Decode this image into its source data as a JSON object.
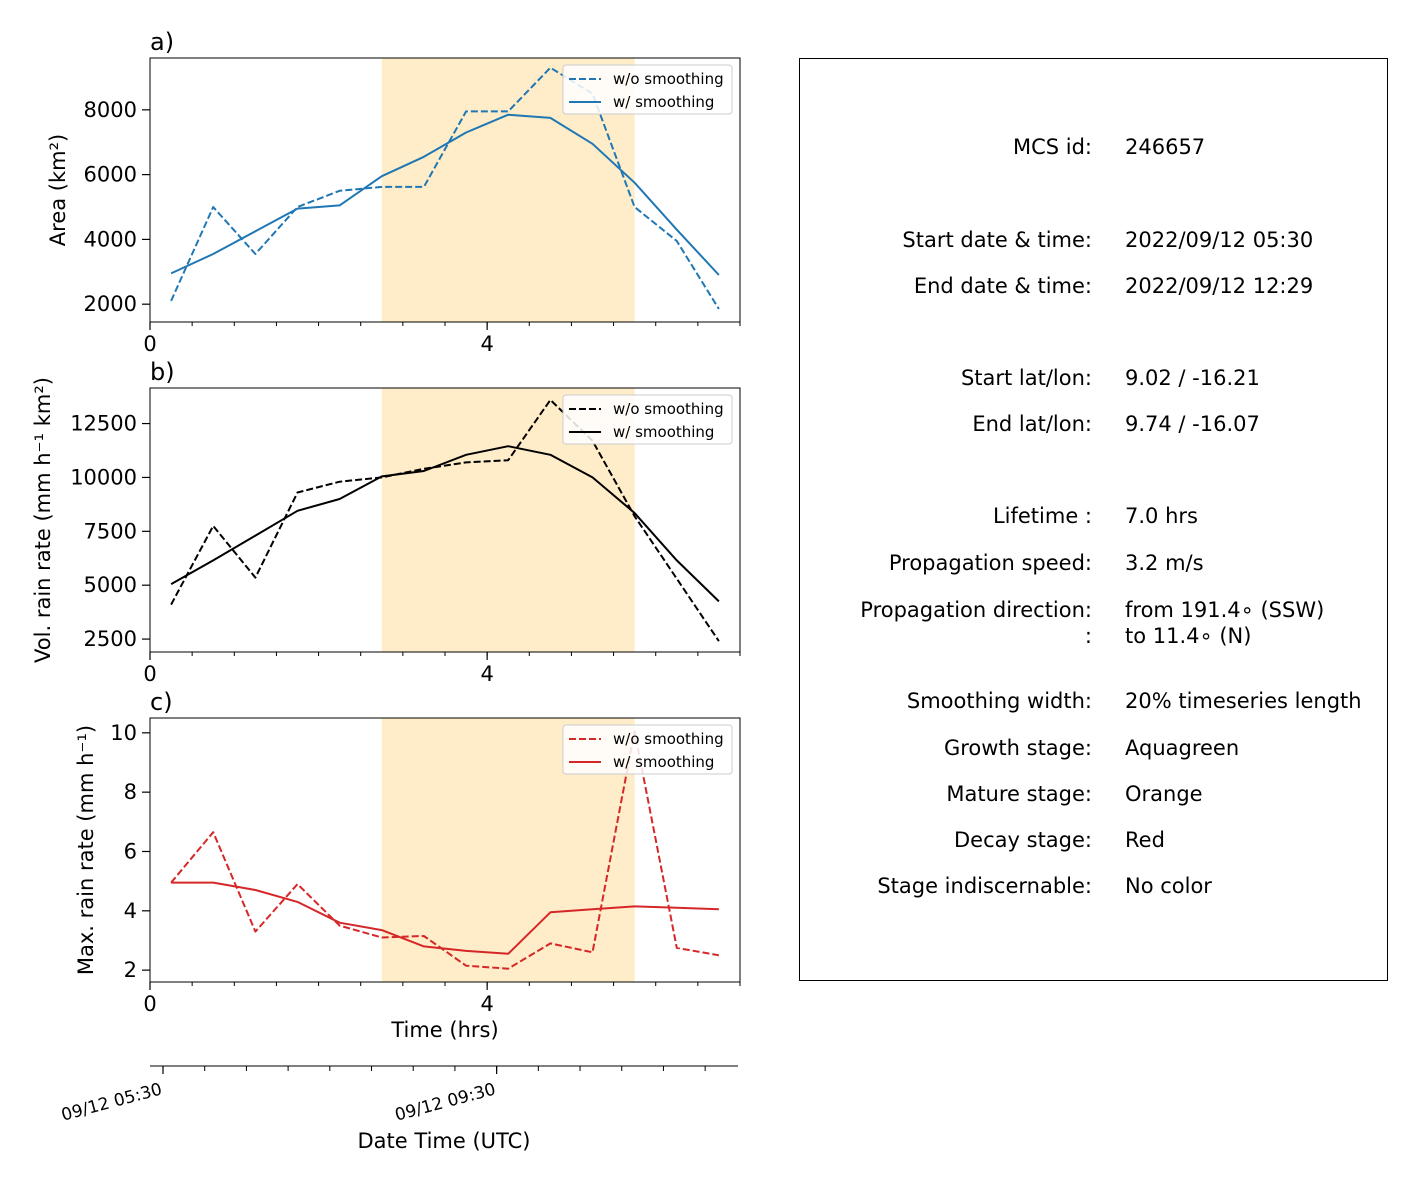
{
  "chart_data": [
    {
      "type": "line",
      "panel_label": "a)",
      "xlabel": "",
      "ylabel": "Area  (km²)",
      "xlim": [
        0,
        7.0
      ],
      "ylim": [
        1450,
        9600
      ],
      "xticks": [
        0,
        4
      ],
      "yticks": [
        2000,
        4000,
        6000,
        8000
      ],
      "mature_stage_span": [
        2.75,
        5.75
      ],
      "legend_position": "upper right",
      "x": [
        0.25,
        0.75,
        1.25,
        1.75,
        2.25,
        2.75,
        3.25,
        3.75,
        4.25,
        4.75,
        5.25,
        5.75,
        6.25,
        6.75
      ],
      "series": [
        {
          "name": "w/o smoothing",
          "style": "dashed",
          "color": "#1f77b4",
          "values": [
            2100,
            5000,
            3550,
            5000,
            5500,
            5620,
            5620,
            7950,
            7950,
            9300,
            8500,
            5000,
            3950,
            1850
          ]
        },
        {
          "name": "w/ smoothing",
          "style": "solid",
          "color": "#1f77b4",
          "values": [
            2950,
            3550,
            4250,
            4950,
            5050,
            5950,
            6550,
            7300,
            7850,
            7750,
            6950,
            5750,
            4300,
            2900
          ]
        }
      ]
    },
    {
      "type": "line",
      "panel_label": "b)",
      "xlabel": "",
      "ylabel": "Vol. rain rate (mm h⁻¹ km²)",
      "xlim": [
        0,
        7.0
      ],
      "ylim": [
        1900,
        14150
      ],
      "xticks": [
        0,
        4
      ],
      "yticks": [
        2500,
        5000,
        7500,
        10000,
        12500
      ],
      "mature_stage_span": [
        2.75,
        5.75
      ],
      "legend_position": "upper right",
      "x": [
        0.25,
        0.75,
        1.25,
        1.75,
        2.25,
        2.75,
        3.25,
        3.75,
        4.25,
        4.75,
        5.25,
        5.75,
        6.25,
        6.75
      ],
      "series": [
        {
          "name": "w/o smoothing",
          "style": "dashed",
          "color": "#000000",
          "values": [
            4100,
            7750,
            5350,
            9300,
            9800,
            10000,
            10400,
            10700,
            10800,
            13600,
            11700,
            8200,
            5300,
            2400
          ]
        },
        {
          "name": "w/ smoothing",
          "style": "solid",
          "color": "#000000",
          "values": [
            5050,
            6150,
            7300,
            8450,
            9000,
            10050,
            10300,
            11050,
            11450,
            11050,
            10000,
            8350,
            6150,
            4250
          ]
        }
      ]
    },
    {
      "type": "line",
      "panel_label": "c)",
      "xlabel": "Time (hrs)",
      "ylabel": "Max. rain rate  (mm h⁻¹)",
      "xlim": [
        0,
        7.0
      ],
      "ylim": [
        1.6,
        10.5
      ],
      "xticks": [
        0,
        4
      ],
      "yticks": [
        2,
        4,
        6,
        8,
        10
      ],
      "mature_stage_span": [
        2.75,
        5.75
      ],
      "legend_position": "upper right",
      "x": [
        0.25,
        0.75,
        1.25,
        1.75,
        2.25,
        2.75,
        3.25,
        3.75,
        4.25,
        4.75,
        5.25,
        5.75,
        6.25,
        6.75
      ],
      "series": [
        {
          "name": "w/o smoothing",
          "style": "dashed",
          "color": "#d62728",
          "values": [
            4.95,
            6.65,
            3.3,
            4.9,
            3.5,
            3.1,
            3.15,
            2.15,
            2.05,
            2.9,
            2.6,
            10.05,
            2.75,
            2.5
          ]
        },
        {
          "name": "w/ smoothing",
          "style": "solid",
          "color": "#d62728",
          "values": [
            4.95,
            4.95,
            4.7,
            4.3,
            3.6,
            3.35,
            2.8,
            2.65,
            2.55,
            3.95,
            4.05,
            4.15,
            4.1,
            4.05
          ]
        }
      ]
    },
    {
      "type": "axis",
      "xlabel": "Date Time (UTC)",
      "tick_labels": [
        "09/12 05:30",
        "09/12 09:30"
      ],
      "tick_hours": [
        0,
        4
      ]
    }
  ],
  "info_panel": {
    "rows": [
      {
        "label": "MCS id:",
        "value": "246657"
      },
      {
        "label": "Start date & time:",
        "value": "2022/09/12 05:30"
      },
      {
        "label": "End date & time:",
        "value": "2022/09/12 12:29"
      },
      {
        "label": "Start lat/lon:",
        "value": "9.02 / -16.21"
      },
      {
        "label": "End lat/lon:",
        "value": "9.74 / -16.07"
      },
      {
        "label": "Lifetime :",
        "value": "7.0 hrs"
      },
      {
        "label": "Propagation speed:",
        "value": "3.2 m/s"
      },
      {
        "label": "Propagation direction:",
        "value": "from 191.4∘ (SSW)"
      },
      {
        "label": ":",
        "value": "to    11.4∘ (N)"
      },
      {
        "label": "Smoothing width:",
        "value": "20% timeseries length"
      },
      {
        "label": "Growth stage:",
        "value": "Aquagreen"
      },
      {
        "label": "Mature stage:",
        "value": "Orange"
      },
      {
        "label": "Decay stage:",
        "value": "Red"
      },
      {
        "label": "Stage indiscernable:",
        "value": "No color"
      }
    ]
  },
  "colors": {
    "mature_stage": "#ffecc8",
    "blue": "#1f77b4",
    "black": "#000000",
    "red": "#d62728"
  }
}
